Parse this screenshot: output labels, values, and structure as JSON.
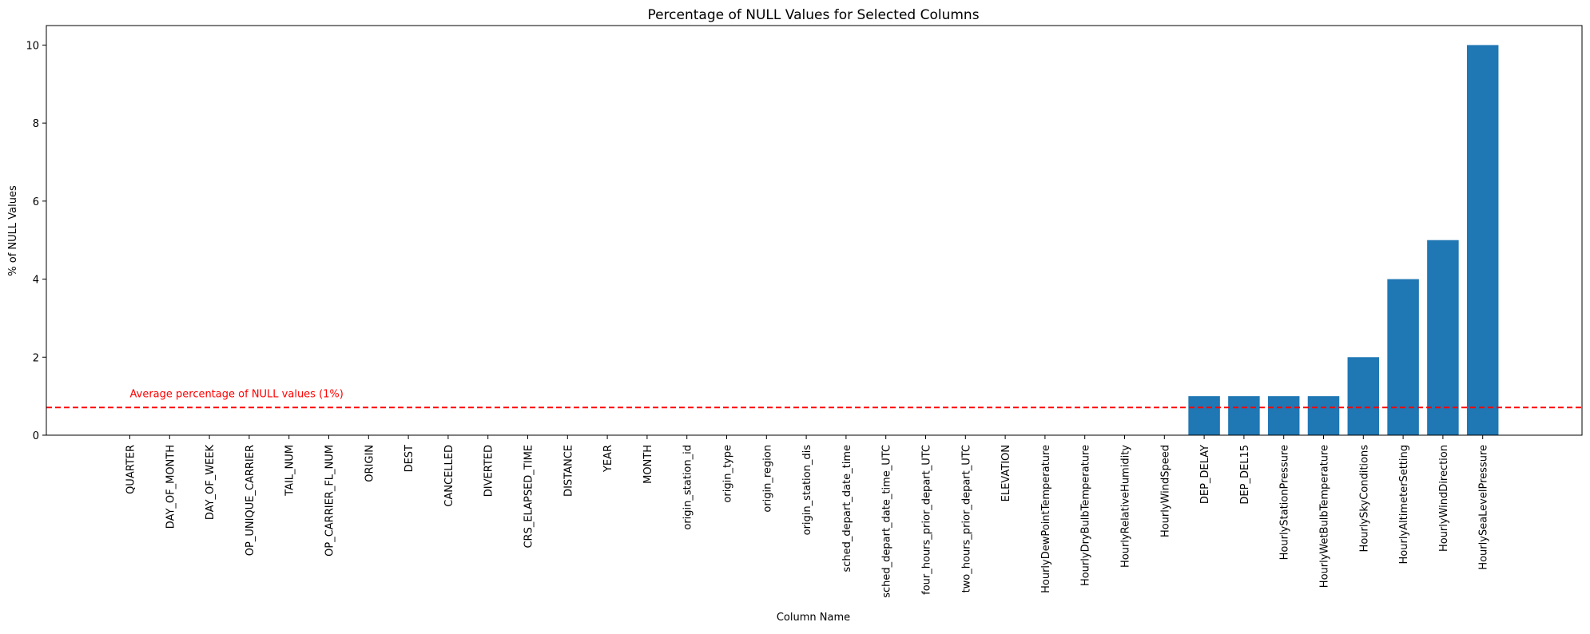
{
  "chart_data": {
    "type": "bar",
    "title": "Percentage of NULL Values for Selected Columns",
    "xlabel": "Column Name",
    "ylabel": "% of NULL Values",
    "ylim": [
      0,
      10.5
    ],
    "yticks": [
      0,
      2,
      4,
      6,
      8,
      10
    ],
    "grid": false,
    "categories": [
      "QUARTER",
      "DAY_OF_MONTH",
      "DAY_OF_WEEK",
      "OP_UNIQUE_CARRIER",
      "TAIL_NUM",
      "OP_CARRIER_FL_NUM",
      "ORIGIN",
      "DEST",
      "CANCELLED",
      "DIVERTED",
      "CRS_ELAPSED_TIME",
      "DISTANCE",
      "YEAR",
      "MONTH",
      "origin_station_id",
      "origin_type",
      "origin_region",
      "origin_station_dis",
      "sched_depart_date_time",
      "sched_depart_date_time_UTC",
      "four_hours_prior_depart_UTC",
      "two_hours_prior_depart_UTC",
      "ELEVATION",
      "HourlyDewPointTemperature",
      "HourlyDryBulbTemperature",
      "HourlyRelativeHumidity",
      "HourlyWindSpeed",
      "DEP_DELAY",
      "DEP_DEL15",
      "HourlyStationPressure",
      "HourlyWetBulbTemperature",
      "HourlySkyConditions",
      "HourlyAltimeterSetting",
      "HourlyWindDirection",
      "HourlySeaLevelPressure"
    ],
    "values": [
      0,
      0,
      0,
      0,
      0,
      0,
      0,
      0,
      0,
      0,
      0,
      0,
      0,
      0,
      0,
      0,
      0,
      0,
      0,
      0,
      0,
      0,
      0,
      0,
      0,
      0,
      0,
      1,
      1,
      1,
      1,
      2,
      4,
      5,
      10
    ],
    "bar_color": "#1f77b4",
    "reference_line": {
      "value": 0.71,
      "style": "dashed",
      "color": "#ff0000",
      "label": "Average percentage of NULL values (1%)"
    }
  }
}
